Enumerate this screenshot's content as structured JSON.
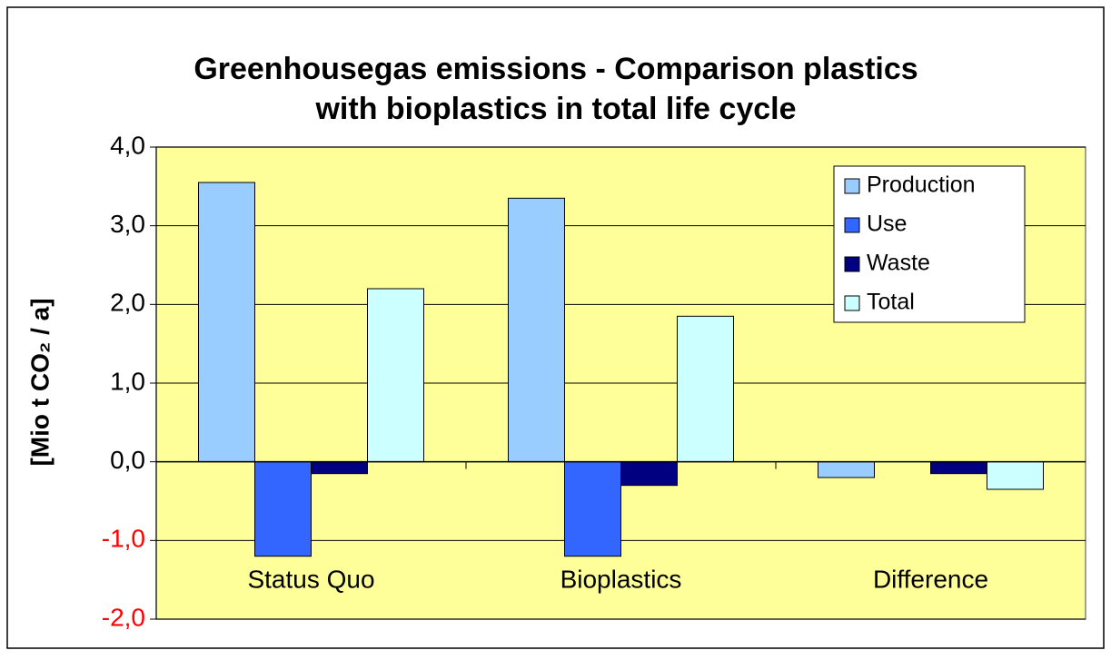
{
  "chart_data": {
    "type": "bar",
    "title": [
      "Greenhousegas emissions - Comparison plastics",
      "with bioplastics in total life cycle"
    ],
    "y_label": "[Mio t CO₂ / a]",
    "categories": [
      "Status Quo",
      "Bioplastics",
      "Difference"
    ],
    "series": [
      {
        "name": "Production",
        "color": "#99ccff",
        "values": [
          3.55,
          3.35,
          -0.2
        ]
      },
      {
        "name": "Use",
        "color": "#3366ff",
        "values": [
          -1.2,
          -1.2,
          0
        ]
      },
      {
        "name": "Waste",
        "color": "#000080",
        "values": [
          -0.15,
          -0.3,
          -0.15
        ]
      },
      {
        "name": "Total",
        "color": "#ccffff",
        "values": [
          2.2,
          1.85,
          -0.35
        ]
      }
    ],
    "ylim": [
      -2,
      4
    ],
    "yticks": [
      {
        "value": -2,
        "label": "-2,0"
      },
      {
        "value": -1,
        "label": "-1,0"
      },
      {
        "value": 0,
        "label": "0,0"
      },
      {
        "value": 1,
        "label": "1,0"
      },
      {
        "value": 2,
        "label": "2,0"
      },
      {
        "value": 3,
        "label": "3,0"
      },
      {
        "value": 4,
        "label": "4,0"
      }
    ],
    "negative_tick_color": "#ff0000",
    "plot_background": "#ffff99",
    "grid": true,
    "legend": "top-right"
  }
}
